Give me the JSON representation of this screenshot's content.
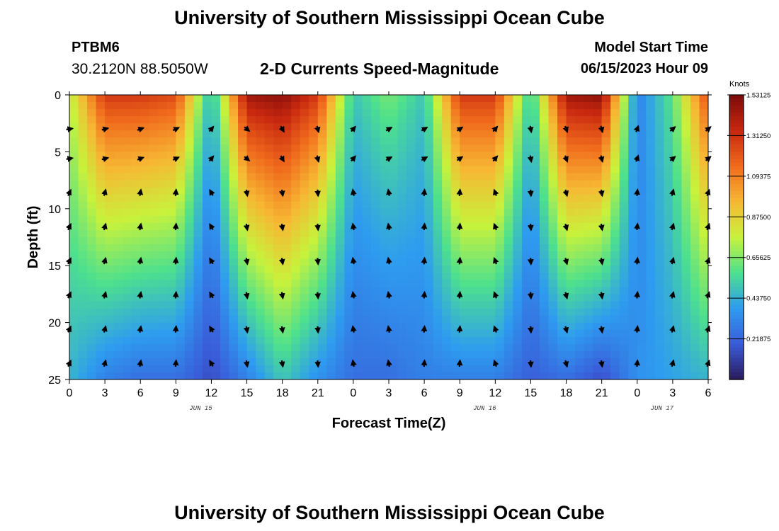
{
  "header": {
    "title": "University of Southern Mississippi Ocean Cube",
    "station": "PTBM6",
    "coordinates": "30.2120N  88.5050W",
    "subtitle": "2-D Currents Speed-Magnitude",
    "model_start_label": "Model Start Time",
    "model_start_value": "06/15/2023 Hour 09"
  },
  "footer": {
    "title": "University of Southern Mississippi Ocean Cube"
  },
  "chart_data": {
    "type": "heatmap",
    "title": "2-D Currents Speed-Magnitude",
    "xlabel": "Forecast Time(Z)",
    "ylabel": "Depth (ft)",
    "x_ticks": [
      "0",
      "3",
      "6",
      "9",
      "12",
      "15",
      "18",
      "21",
      "0",
      "3",
      "6",
      "9",
      "12",
      "15",
      "18",
      "21",
      "0",
      "3",
      "6"
    ],
    "date_labels": [
      {
        "label": "JUN 15",
        "at_tick": 3.7
      },
      {
        "label": "JUN 16",
        "at_tick": 11.7
      },
      {
        "label": "JUN 17",
        "at_tick": 16.7
      }
    ],
    "y_ticks": [
      0,
      5,
      10,
      15,
      20,
      25
    ],
    "ylim": [
      0,
      25
    ],
    "forecast_hours": [
      0,
      54
    ],
    "colorbar": {
      "units": "Knots",
      "min": 0,
      "max": 1.53125,
      "tick_labels": [
        "1.53125",
        "1.31250",
        "1.09375",
        "0.87500",
        "0.65625",
        "0.43750",
        "0.21875"
      ],
      "tick_values": [
        1.53125,
        1.3125,
        1.09375,
        0.875,
        0.65625,
        0.4375,
        0.21875
      ],
      "colors": [
        "#2b1a5c",
        "#3a5cd9",
        "#2e9cf0",
        "#4de08e",
        "#c8f23b",
        "#f7b733",
        "#f06a1c",
        "#c8280f",
        "#7a0a0a"
      ]
    },
    "surface_speed_knots": [
      0.75,
      1.3,
      1.3,
      1.25,
      0.45,
      1.45,
      1.5,
      1.3,
      0.5,
      0.65,
      0.5,
      1.3,
      1.3,
      0.5,
      1.45,
      1.5,
      0.3,
      0.6,
      1.25
    ],
    "bottom_speed_knots": [
      0.45,
      0.3,
      0.25,
      0.25,
      0.15,
      0.3,
      0.5,
      0.35,
      0.25,
      0.25,
      0.3,
      0.3,
      0.3,
      0.2,
      0.25,
      0.15,
      0.35,
      0.4,
      0.45
    ],
    "arrow_depths_ft": [
      3,
      5.6,
      8.6,
      11.6,
      14.6,
      17.6,
      20.6,
      23.6
    ],
    "arrow_directions_deg": {
      "surface_layers": [
        80,
        75,
        70,
        65,
        40,
        130,
        150,
        165,
        40,
        60,
        60,
        55,
        40,
        170,
        160,
        165,
        20,
        50,
        50
      ],
      "deep_layers": [
        25,
        15,
        10,
        5,
        330,
        170,
        170,
        175,
        350,
        350,
        5,
        5,
        340,
        175,
        165,
        170,
        5,
        15,
        20
      ]
    }
  }
}
